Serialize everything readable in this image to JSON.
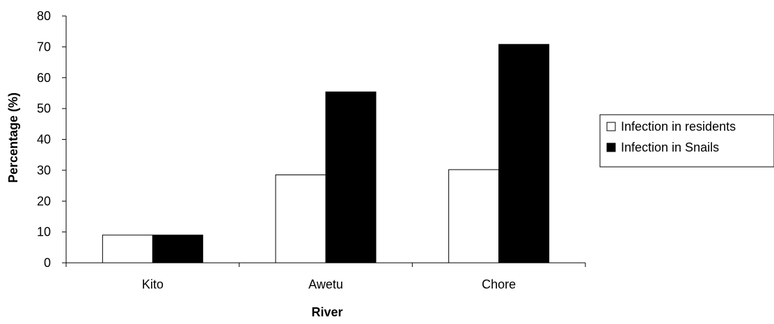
{
  "chart_data": {
    "type": "bar",
    "title": "",
    "xlabel": "River",
    "ylabel": "Percentage (%)",
    "categories": [
      "Kito",
      "Awetu",
      "Chore"
    ],
    "series": [
      {
        "name": "Infection in residents",
        "values": [
          9,
          28.5,
          30.2
        ],
        "color": "#ffffff"
      },
      {
        "name": "Infection in Snails",
        "values": [
          9,
          55.4,
          70.8
        ],
        "color": "#000000"
      }
    ],
    "ylim": [
      0,
      80
    ],
    "yticks": [
      0,
      10,
      20,
      30,
      40,
      50,
      60,
      70,
      80
    ],
    "grid": false,
    "legend": "right"
  }
}
